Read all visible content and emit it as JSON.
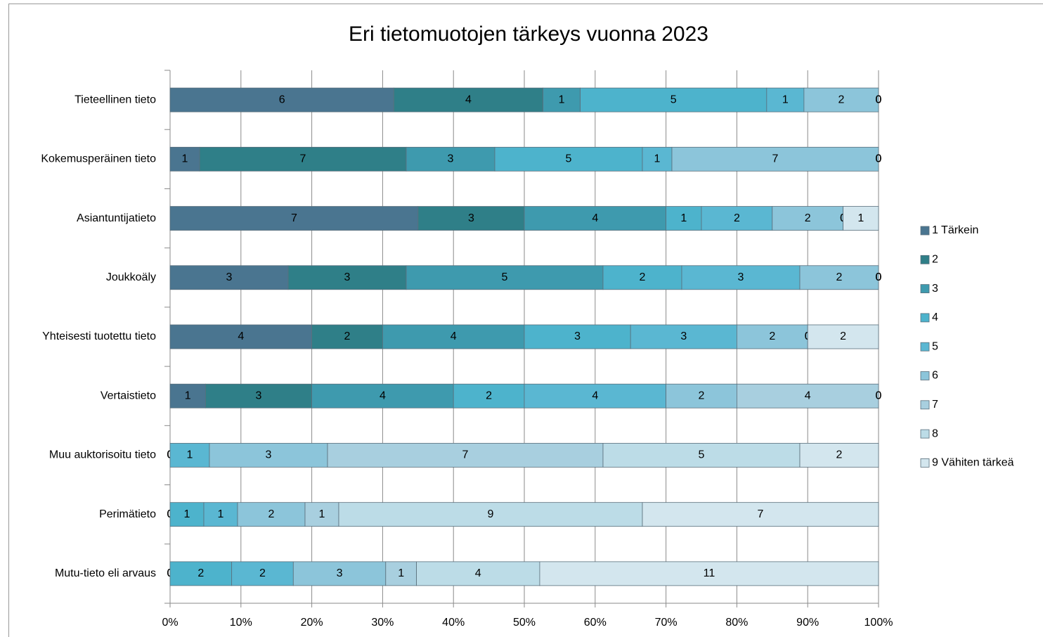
{
  "chart_data": {
    "type": "bar",
    "orientation": "horizontal",
    "stacking": "percent",
    "title": "Eri tietomuotojen tärkeys vuonna 2023",
    "categories": [
      "Tieteellinen tieto",
      "Kokemusperäinen tieto",
      "Asiantuntijatieto",
      "Joukkoäly",
      "Yhteisesti tuotettu tieto",
      "Vertaistieto",
      "Muu auktorisoitu tieto",
      "Perimätieto",
      "Mutu-tieto eli arvaus"
    ],
    "series": [
      {
        "name": "1 Tärkein",
        "color": "#4a7590",
        "values": [
          6,
          1,
          7,
          3,
          4,
          1,
          0,
          0,
          0
        ]
      },
      {
        "name": "2",
        "color": "#2f7f88",
        "values": [
          4,
          7,
          3,
          3,
          2,
          3,
          0,
          0,
          0
        ]
      },
      {
        "name": "3",
        "color": "#3e9aae",
        "values": [
          1,
          3,
          4,
          5,
          4,
          4,
          0,
          0,
          0
        ]
      },
      {
        "name": "4",
        "color": "#4db3cc",
        "values": [
          5,
          5,
          1,
          2,
          3,
          2,
          0,
          1,
          2
        ]
      },
      {
        "name": "5",
        "color": "#5ab7d2",
        "values": [
          1,
          1,
          2,
          3,
          3,
          4,
          1,
          1,
          2
        ]
      },
      {
        "name": "6",
        "color": "#8cc5da",
        "values": [
          2,
          7,
          2,
          2,
          2,
          2,
          3,
          2,
          3
        ]
      },
      {
        "name": "7",
        "color": "#a8cfdf",
        "values": [
          0,
          0,
          0,
          0,
          0,
          4,
          7,
          1,
          1
        ]
      },
      {
        "name": "8",
        "color": "#bcdce7",
        "values": [
          0,
          0,
          0,
          0,
          0,
          0,
          5,
          9,
          4
        ]
      },
      {
        "name": "9 Vähiten tärkeä",
        "color": "#d3e6ee",
        "values": [
          0,
          0,
          1,
          0,
          2,
          0,
          2,
          7,
          11
        ]
      }
    ],
    "xlim": [
      0,
      100
    ],
    "xticks": [
      {
        "value": 0,
        "label": "0%"
      },
      {
        "value": 10,
        "label": "10%"
      },
      {
        "value": 20,
        "label": "20%"
      },
      {
        "value": 30,
        "label": "30%"
      },
      {
        "value": 40,
        "label": "40%"
      },
      {
        "value": 50,
        "label": "50%"
      },
      {
        "value": 60,
        "label": "60%"
      },
      {
        "value": 70,
        "label": "70%"
      },
      {
        "value": 80,
        "label": "80%"
      },
      {
        "value": 90,
        "label": "90%"
      },
      {
        "value": 100,
        "label": "100%"
      }
    ],
    "grid": true,
    "legend": "right"
  }
}
